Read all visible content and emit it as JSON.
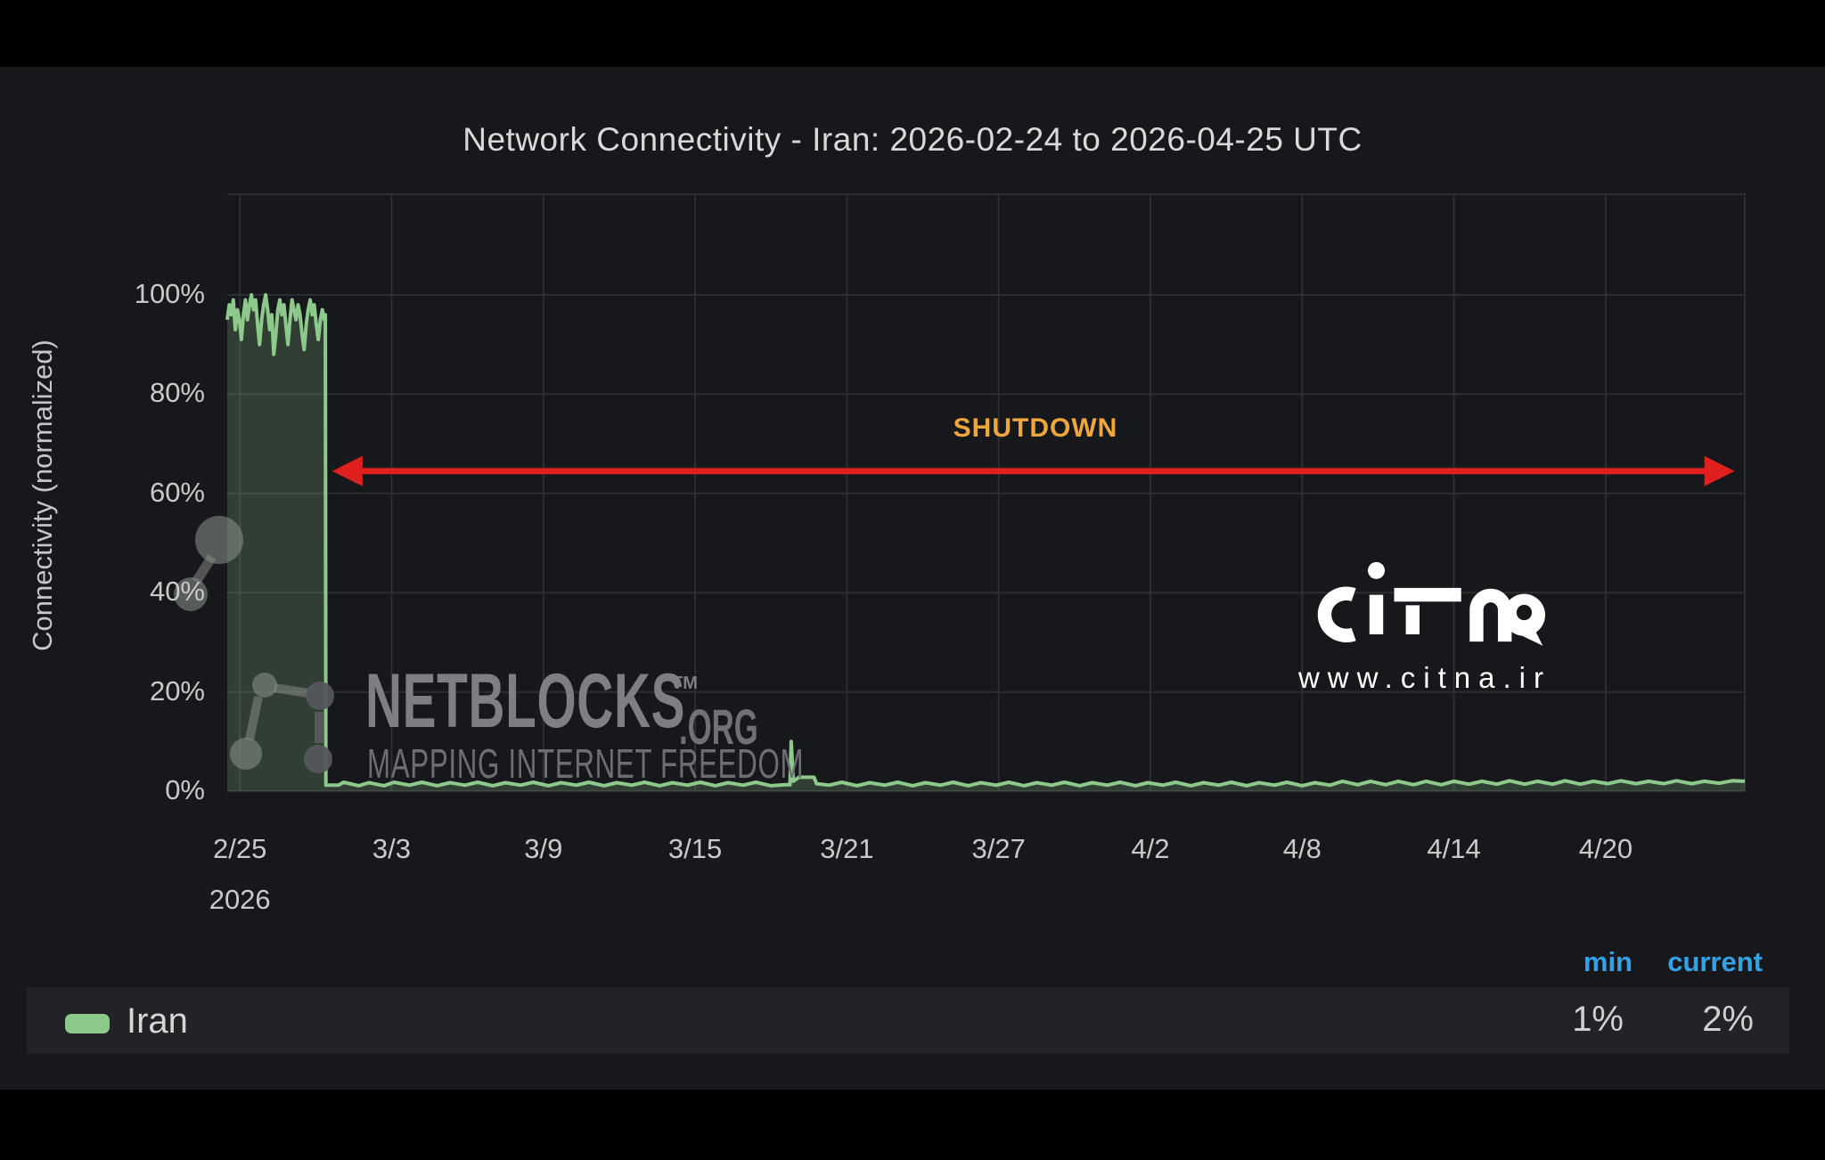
{
  "title": "Network Connectivity - Iran: 2026-02-24 to 2026-04-25 UTC",
  "y_axis_label": "Connectivity (normalized)",
  "watermark": {
    "brand": "NETBLOCKS",
    "tm": "TM",
    "suffix": ".ORG",
    "tagline": "MAPPING INTERNET FREEDOM"
  },
  "logo": {
    "text": "citna",
    "url": "www.citna.ir"
  },
  "annotation": {
    "label": "SHUTDOWN",
    "label_color": "#efa63a",
    "arrow_color": "#e01f1f",
    "from_day": 4.15,
    "to_day": 59.6,
    "pct": 64.5
  },
  "legend": {
    "headers": [
      "min",
      "current"
    ],
    "header_color": "#34a2e5",
    "series_label": "Iran",
    "swatch_color": "#8cc98a",
    "min_value": "1%",
    "current_value": "2%"
  },
  "chart_data": {
    "type": "area",
    "title": "Network Connectivity - Iran: 2026-02-24 to 2026-04-25 UTC",
    "xlabel": "",
    "ylabel": "Connectivity (normalized)",
    "x_unit": "days since 2026-02-24 UTC",
    "x_range": [
      0,
      60
    ],
    "ylim": [
      0,
      120
    ],
    "grid": true,
    "legend_position": "bottom",
    "line_color": "#8cc98a",
    "fill_opacity": 0.22,
    "grid_color": "#2c2e33",
    "yticks": [
      {
        "pct": 0,
        "label": "0%"
      },
      {
        "pct": 20,
        "label": "20%"
      },
      {
        "pct": 40,
        "label": "40%"
      },
      {
        "pct": 60,
        "label": "60%"
      },
      {
        "pct": 80,
        "label": "80%"
      },
      {
        "pct": 100,
        "label": "100%"
      }
    ],
    "xticks": [
      {
        "day": 0.5,
        "label": "2/25"
      },
      {
        "day": 6.5,
        "label": "3/3"
      },
      {
        "day": 12.5,
        "label": "3/9"
      },
      {
        "day": 18.5,
        "label": "3/15"
      },
      {
        "day": 24.5,
        "label": "3/21"
      },
      {
        "day": 30.5,
        "label": "3/27"
      },
      {
        "day": 36.5,
        "label": "4/2"
      },
      {
        "day": 42.5,
        "label": "4/8"
      },
      {
        "day": 48.5,
        "label": "4/14"
      },
      {
        "day": 54.5,
        "label": "4/20"
      }
    ],
    "year_label": {
      "day": 0.5,
      "label": "2026"
    },
    "stats": {
      "min": "1%",
      "current": "2%"
    },
    "series": [
      {
        "name": "Iran",
        "points": [
          [
            0,
            95
          ],
          [
            0.08,
            98
          ],
          [
            0.16,
            96
          ],
          [
            0.24,
            99
          ],
          [
            0.32,
            93
          ],
          [
            0.4,
            97
          ],
          [
            0.48,
            95
          ],
          [
            0.56,
            91
          ],
          [
            0.64,
            96
          ],
          [
            0.72,
            99
          ],
          [
            0.8,
            95
          ],
          [
            0.88,
            98
          ],
          [
            0.96,
            100
          ],
          [
            1.04,
            97
          ],
          [
            1.12,
            99
          ],
          [
            1.2,
            94
          ],
          [
            1.28,
            90
          ],
          [
            1.36,
            95
          ],
          [
            1.44,
            98
          ],
          [
            1.52,
            100
          ],
          [
            1.6,
            97
          ],
          [
            1.68,
            93
          ],
          [
            1.76,
            96
          ],
          [
            1.84,
            88
          ],
          [
            1.92,
            92
          ],
          [
            2.0,
            97
          ],
          [
            2.08,
            99
          ],
          [
            2.16,
            96
          ],
          [
            2.24,
            98
          ],
          [
            2.32,
            94
          ],
          [
            2.4,
            90
          ],
          [
            2.48,
            95
          ],
          [
            2.56,
            99
          ],
          [
            2.64,
            97
          ],
          [
            2.72,
            95
          ],
          [
            2.8,
            98
          ],
          [
            2.88,
            96
          ],
          [
            2.96,
            92
          ],
          [
            3.04,
            89
          ],
          [
            3.12,
            94
          ],
          [
            3.2,
            97
          ],
          [
            3.28,
            99
          ],
          [
            3.36,
            96
          ],
          [
            3.44,
            98
          ],
          [
            3.52,
            94
          ],
          [
            3.6,
            91
          ],
          [
            3.68,
            95
          ],
          [
            3.76,
            97
          ],
          [
            3.84,
            95
          ],
          [
            3.88,
            96
          ],
          [
            3.9,
            1.2
          ],
          [
            4.4,
            1.2
          ],
          [
            4.6,
            1.8
          ],
          [
            5.2,
            1.1
          ],
          [
            5.6,
            1.7
          ],
          [
            6.2,
            1.1
          ],
          [
            6.6,
            1.8
          ],
          [
            7.2,
            1.2
          ],
          [
            7.7,
            1.8
          ],
          [
            8.3,
            1.1
          ],
          [
            8.8,
            1.7
          ],
          [
            9.4,
            1.2
          ],
          [
            9.9,
            1.8
          ],
          [
            10.5,
            1.1
          ],
          [
            11,
            1.7
          ],
          [
            11.6,
            1.2
          ],
          [
            12.1,
            1.8
          ],
          [
            12.7,
            1.1
          ],
          [
            13.2,
            1.7
          ],
          [
            13.8,
            1.2
          ],
          [
            14.3,
            1.8
          ],
          [
            14.9,
            1.1
          ],
          [
            15.4,
            1.7
          ],
          [
            16,
            1.2
          ],
          [
            16.5,
            1.8
          ],
          [
            17.1,
            1.1
          ],
          [
            17.6,
            1.7
          ],
          [
            18.2,
            1.2
          ],
          [
            18.7,
            1.8
          ],
          [
            19.3,
            1.1
          ],
          [
            19.8,
            1.7
          ],
          [
            20.4,
            1.2
          ],
          [
            20.9,
            1.8
          ],
          [
            21.5,
            1.1
          ],
          [
            22.1,
            1.3
          ],
          [
            22.25,
            1.3
          ],
          [
            22.3,
            10
          ],
          [
            22.38,
            2
          ],
          [
            22.6,
            2.8
          ],
          [
            23.2,
            2.8
          ],
          [
            23.3,
            1.5
          ],
          [
            23.8,
            1.2
          ],
          [
            24.3,
            1.8
          ],
          [
            24.9,
            1.1
          ],
          [
            25.4,
            1.7
          ],
          [
            26,
            1.2
          ],
          [
            26.5,
            1.8
          ],
          [
            27.1,
            1.1
          ],
          [
            27.6,
            1.7
          ],
          [
            28.2,
            1.2
          ],
          [
            28.7,
            1.8
          ],
          [
            29.3,
            1.1
          ],
          [
            29.8,
            1.7
          ],
          [
            30.4,
            1.2
          ],
          [
            30.9,
            1.8
          ],
          [
            31.5,
            1.1
          ],
          [
            32,
            1.7
          ],
          [
            32.6,
            1.2
          ],
          [
            33.1,
            1.8
          ],
          [
            33.7,
            1.1
          ],
          [
            34.2,
            1.7
          ],
          [
            34.8,
            1.2
          ],
          [
            35.3,
            1.8
          ],
          [
            35.9,
            1.1
          ],
          [
            36.4,
            1.7
          ],
          [
            37,
            1.2
          ],
          [
            37.5,
            1.8
          ],
          [
            38.1,
            1.1
          ],
          [
            38.6,
            1.7
          ],
          [
            39.2,
            1.2
          ],
          [
            39.7,
            1.8
          ],
          [
            40.3,
            1.1
          ],
          [
            40.8,
            1.7
          ],
          [
            41.4,
            1.2
          ],
          [
            41.9,
            1.8
          ],
          [
            42.5,
            1.1
          ],
          [
            43,
            1.7
          ],
          [
            43.6,
            1.2
          ],
          [
            44.1,
            2
          ],
          [
            44.7,
            1.3
          ],
          [
            45.2,
            2
          ],
          [
            45.8,
            1.3
          ],
          [
            46.3,
            2
          ],
          [
            46.9,
            1.3
          ],
          [
            47.4,
            2
          ],
          [
            48,
            1.3
          ],
          [
            48.5,
            2
          ],
          [
            49.1,
            1.4
          ],
          [
            49.6,
            2
          ],
          [
            50.2,
            1.4
          ],
          [
            50.7,
            2.1
          ],
          [
            51.3,
            1.4
          ],
          [
            51.8,
            2
          ],
          [
            52.4,
            1.4
          ],
          [
            52.9,
            2.1
          ],
          [
            53.5,
            1.4
          ],
          [
            54,
            2
          ],
          [
            54.6,
            1.5
          ],
          [
            55.1,
            2.1
          ],
          [
            55.7,
            1.5
          ],
          [
            56.2,
            2
          ],
          [
            56.8,
            1.5
          ],
          [
            57.3,
            2.1
          ],
          [
            57.9,
            1.5
          ],
          [
            58.4,
            2
          ],
          [
            59,
            1.6
          ],
          [
            59.5,
            2.1
          ],
          [
            60,
            2
          ]
        ]
      }
    ]
  }
}
